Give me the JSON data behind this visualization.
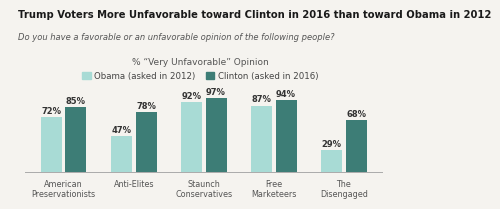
{
  "title": "Trump Voters More Unfavorable toward Clinton in 2016 than toward Obama in 2012",
  "subtitle": "Do you have a favorable or an unfavorable opinion of the following people?",
  "ylabel": "% “Very Unfavorable” Opinion",
  "categories": [
    "American\nPreservationists",
    "Anti-Elites",
    "Staunch\nConservatives",
    "Free\nMarketeers",
    "The\nDisengaged"
  ],
  "obama_values": [
    72,
    47,
    92,
    87,
    29
  ],
  "clinton_values": [
    85,
    78,
    97,
    94,
    68
  ],
  "obama_color": "#a8dbd5",
  "clinton_color": "#3d7d76",
  "legend_obama": "Obama (asked in 2012)",
  "legend_clinton": "Clinton (asked in 2016)",
  "background_color": "#f5f3ef",
  "title_fontsize": 7.2,
  "subtitle_fontsize": 6.0,
  "ylabel_fontsize": 6.5,
  "bar_label_fontsize": 6.0,
  "legend_fontsize": 6.2,
  "tick_fontsize": 5.8,
  "ylim": [
    0,
    110
  ],
  "bar_width": 0.3,
  "bar_gap": 0.05
}
